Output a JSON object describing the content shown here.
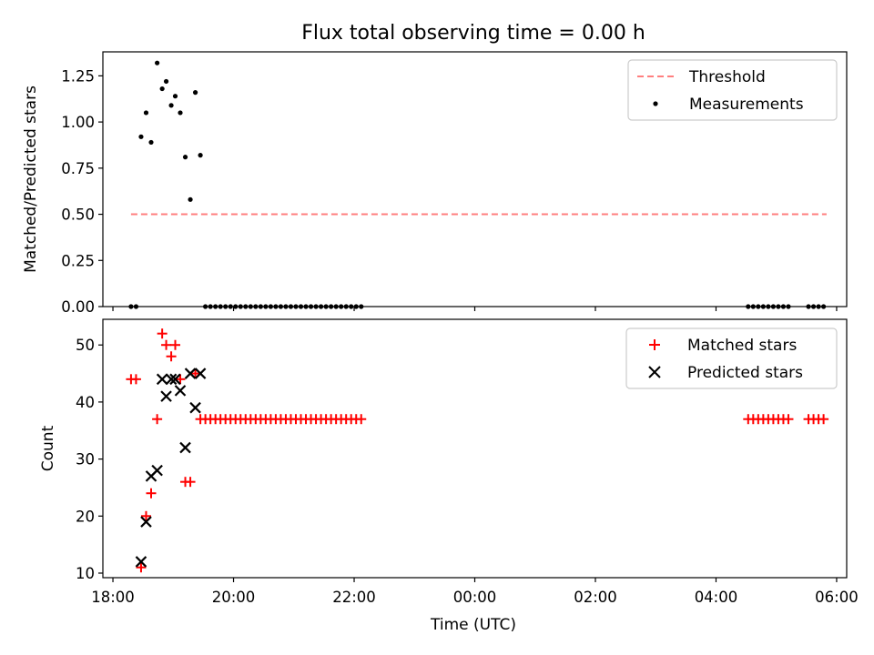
{
  "chart_data": [
    {
      "type": "scatter",
      "title": "Flux total observing time = 0.00 h",
      "xlabel": "",
      "ylabel": "Matched/Predicted stars",
      "xlim": [
        "17:50",
        "06:10"
      ],
      "ylim": [
        0,
        1.38
      ],
      "yticks": [
        "0.00",
        "0.25",
        "0.50",
        "0.75",
        "1.00",
        "1.25"
      ],
      "legend_position": "top-right",
      "threshold": {
        "name": "Threshold",
        "color": "#ff7f7f",
        "y": 0.5,
        "x_start": "18:18",
        "x_end": "05:50"
      },
      "measurements": {
        "name": "Measurements",
        "color": "#000000",
        "points": [
          [
            "18:18",
            0.0
          ],
          [
            "18:23",
            0.0
          ],
          [
            "18:28",
            0.92
          ],
          [
            "18:33",
            1.05
          ],
          [
            "18:38",
            0.89
          ],
          [
            "18:44",
            1.32
          ],
          [
            "18:49",
            1.18
          ],
          [
            "18:53",
            1.22
          ],
          [
            "18:58",
            1.09
          ],
          [
            "19:02",
            1.14
          ],
          [
            "19:07",
            1.05
          ],
          [
            "19:12",
            0.81
          ],
          [
            "19:17",
            0.58
          ],
          [
            "19:22",
            1.16
          ],
          [
            "19:27",
            0.82
          ],
          [
            "19:32",
            0.0
          ],
          [
            "19:37",
            0.0
          ],
          [
            "19:42",
            0.0
          ],
          [
            "19:47",
            0.0
          ],
          [
            "19:52",
            0.0
          ],
          [
            "19:57",
            0.0
          ],
          [
            "20:02",
            0.0
          ],
          [
            "20:07",
            0.0
          ],
          [
            "20:12",
            0.0
          ],
          [
            "20:17",
            0.0
          ],
          [
            "20:22",
            0.0
          ],
          [
            "20:27",
            0.0
          ],
          [
            "20:32",
            0.0
          ],
          [
            "20:37",
            0.0
          ],
          [
            "20:42",
            0.0
          ],
          [
            "20:47",
            0.0
          ],
          [
            "20:52",
            0.0
          ],
          [
            "20:57",
            0.0
          ],
          [
            "21:02",
            0.0
          ],
          [
            "21:07",
            0.0
          ],
          [
            "21:12",
            0.0
          ],
          [
            "21:17",
            0.0
          ],
          [
            "21:22",
            0.0
          ],
          [
            "21:27",
            0.0
          ],
          [
            "21:32",
            0.0
          ],
          [
            "21:37",
            0.0
          ],
          [
            "21:42",
            0.0
          ],
          [
            "21:47",
            0.0
          ],
          [
            "21:52",
            0.0
          ],
          [
            "21:57",
            0.0
          ],
          [
            "22:02",
            0.0
          ],
          [
            "22:07",
            0.0
          ],
          [
            "04:32",
            0.0
          ],
          [
            "04:37",
            0.0
          ],
          [
            "04:42",
            0.0
          ],
          [
            "04:47",
            0.0
          ],
          [
            "04:52",
            0.0
          ],
          [
            "04:57",
            0.0
          ],
          [
            "05:02",
            0.0
          ],
          [
            "05:07",
            0.0
          ],
          [
            "05:12",
            0.0
          ],
          [
            "05:32",
            0.0
          ],
          [
            "05:37",
            0.0
          ],
          [
            "05:42",
            0.0
          ],
          [
            "05:47",
            0.0
          ]
        ]
      }
    },
    {
      "type": "scatter",
      "title": "",
      "xlabel": "Time (UTC)",
      "ylabel": "Count",
      "xlim": [
        "17:50",
        "06:10"
      ],
      "ylim": [
        9.2,
        54.5
      ],
      "yticks": [
        "10",
        "20",
        "30",
        "40",
        "50"
      ],
      "xticks": [
        "18:00",
        "20:00",
        "22:00",
        "00:00",
        "02:00",
        "04:00",
        "06:00"
      ],
      "legend_position": "top-right",
      "series": [
        {
          "name": "Matched stars",
          "color": "#ff0000",
          "marker": "plus",
          "points": [
            [
              "18:18",
              44
            ],
            [
              "18:23",
              44
            ],
            [
              "18:28",
              11
            ],
            [
              "18:33",
              20
            ],
            [
              "18:38",
              24
            ],
            [
              "18:44",
              37
            ],
            [
              "18:49",
              52
            ],
            [
              "18:53",
              50
            ],
            [
              "18:58",
              48
            ],
            [
              "19:02",
              50
            ],
            [
              "19:07",
              44
            ],
            [
              "19:12",
              26
            ],
            [
              "19:17",
              26
            ],
            [
              "19:22",
              45
            ],
            [
              "19:27",
              37
            ],
            [
              "19:32",
              37
            ],
            [
              "19:37",
              37
            ],
            [
              "19:42",
              37
            ],
            [
              "19:47",
              37
            ],
            [
              "19:52",
              37
            ],
            [
              "19:57",
              37
            ],
            [
              "20:02",
              37
            ],
            [
              "20:07",
              37
            ],
            [
              "20:12",
              37
            ],
            [
              "20:17",
              37
            ],
            [
              "20:22",
              37
            ],
            [
              "20:27",
              37
            ],
            [
              "20:32",
              37
            ],
            [
              "20:37",
              37
            ],
            [
              "20:42",
              37
            ],
            [
              "20:47",
              37
            ],
            [
              "20:52",
              37
            ],
            [
              "20:57",
              37
            ],
            [
              "21:02",
              37
            ],
            [
              "21:07",
              37
            ],
            [
              "21:12",
              37
            ],
            [
              "21:17",
              37
            ],
            [
              "21:22",
              37
            ],
            [
              "21:27",
              37
            ],
            [
              "21:32",
              37
            ],
            [
              "21:37",
              37
            ],
            [
              "21:42",
              37
            ],
            [
              "21:47",
              37
            ],
            [
              "21:52",
              37
            ],
            [
              "21:57",
              37
            ],
            [
              "22:02",
              37
            ],
            [
              "22:07",
              37
            ],
            [
              "04:32",
              37
            ],
            [
              "04:37",
              37
            ],
            [
              "04:42",
              37
            ],
            [
              "04:47",
              37
            ],
            [
              "04:52",
              37
            ],
            [
              "04:57",
              37
            ],
            [
              "05:02",
              37
            ],
            [
              "05:07",
              37
            ],
            [
              "05:12",
              37
            ],
            [
              "05:32",
              37
            ],
            [
              "05:37",
              37
            ],
            [
              "05:42",
              37
            ],
            [
              "05:47",
              37
            ]
          ]
        },
        {
          "name": "Predicted stars",
          "color": "#000000",
          "marker": "x",
          "points": [
            [
              "18:28",
              12
            ],
            [
              "18:33",
              19
            ],
            [
              "18:38",
              27
            ],
            [
              "18:44",
              28
            ],
            [
              "18:49",
              44
            ],
            [
              "18:53",
              41
            ],
            [
              "18:58",
              44
            ],
            [
              "19:02",
              44
            ],
            [
              "19:07",
              42
            ],
            [
              "19:12",
              32
            ],
            [
              "19:17",
              45
            ],
            [
              "19:22",
              39
            ],
            [
              "19:27",
              45
            ]
          ]
        }
      ]
    }
  ]
}
